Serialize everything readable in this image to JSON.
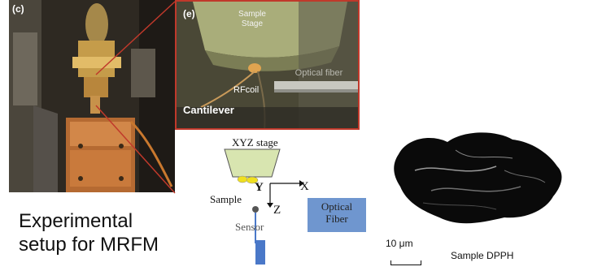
{
  "photo_c": {
    "label": "(c)"
  },
  "photo_e": {
    "label": "(e)",
    "sample_stage": "Sample\nStage",
    "optical_fiber": "Optical fiber",
    "rfcoil": "RFcoil",
    "cantilever": "Cantilever"
  },
  "diagram": {
    "xyz_stage": "XYZ stage",
    "sample": "Sample",
    "axis_y": "Y",
    "axis_x": "X",
    "axis_z": "Z",
    "sensor": "Sensor",
    "optical_fiber": "Optical\nFiber",
    "colors": {
      "stage": "#d8e5b0",
      "sample": "#f0e020",
      "fiber_box": "#6f96cf",
      "sensor": "#4a78c8"
    }
  },
  "caption": {
    "line1": "Experimental",
    "line2": "setup for MRFM"
  },
  "dpph_image": {
    "scale_label": "10 μm",
    "label": "Sample DPPH"
  }
}
